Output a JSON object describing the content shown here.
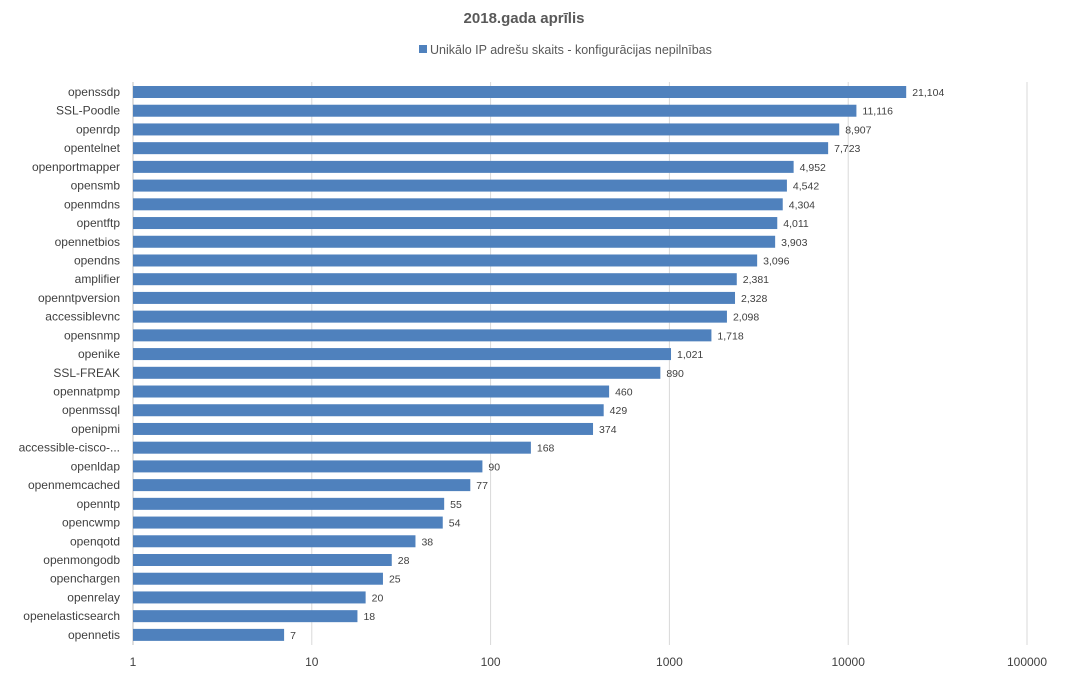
{
  "chart_data": {
    "type": "bar",
    "orientation": "horizontal",
    "title": "2018.gada aprīlis",
    "x_scale": "log",
    "xlim": [
      1,
      100000
    ],
    "x_ticks": [
      "1",
      "10",
      "100",
      "1000",
      "10000",
      "100000"
    ],
    "x_tick_values": [
      1,
      10,
      100,
      1000,
      10000,
      100000
    ],
    "grid": true,
    "legend_position": "top",
    "bar_color": "#4f81bd",
    "series": [
      {
        "name": "Unikālo IP adrešu skaits  -  konfigurācijas nepilnības"
      }
    ],
    "categories": [
      "openssdp",
      "SSL-Poodle",
      "openrdp",
      "opentelnet",
      "openportmapper",
      "opensmb",
      "openmdns",
      "opentftp",
      "opennetbios",
      "opendns",
      "amplifier",
      "openntpversion",
      "accessiblevnc",
      "opensnmp",
      "openike",
      "SSL-FREAK",
      "opennatpmp",
      "openmssql",
      "openipmi",
      "accessible-cisco-...",
      "openldap",
      "openmemcached",
      "openntp",
      "opencwmp",
      "openqotd",
      "openmongodb",
      "openchargen",
      "openrelay",
      "openelasticsearch",
      "opennetis"
    ],
    "values": [
      21104,
      11116,
      8907,
      7723,
      4952,
      4542,
      4304,
      4011,
      3903,
      3096,
      2381,
      2328,
      2098,
      1718,
      1021,
      890,
      460,
      429,
      374,
      168,
      90,
      77,
      55,
      54,
      38,
      28,
      25,
      20,
      18,
      7
    ],
    "value_labels": [
      "21,104",
      "11,116",
      "8,907",
      "7,723",
      "4,952",
      "4,542",
      "4,304",
      "4,011",
      "3,903",
      "3,096",
      "2,381",
      "2,328",
      "2,098",
      "1,718",
      "1,021",
      "890",
      "460",
      "429",
      "374",
      "168",
      "90",
      "77",
      "55",
      "54",
      "38",
      "28",
      "25",
      "20",
      "18",
      "7"
    ]
  }
}
